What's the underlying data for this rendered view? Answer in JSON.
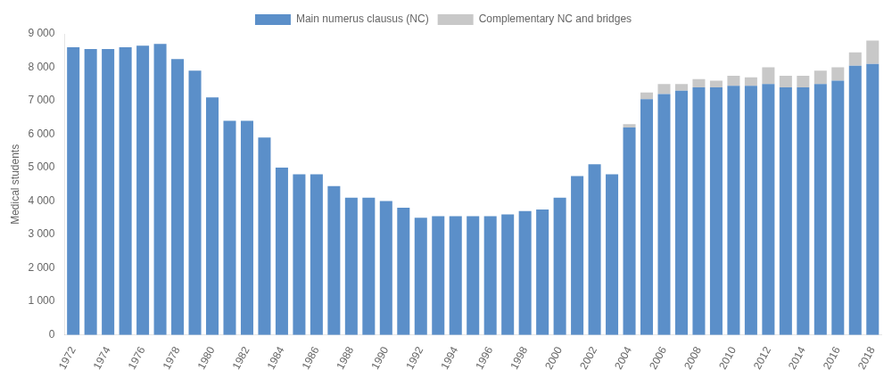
{
  "chart_data": {
    "type": "bar",
    "ylabel": "Medical students",
    "categories": [
      "1972",
      null,
      "1974",
      null,
      "1976",
      null,
      "1978",
      null,
      "1980",
      null,
      "1982",
      null,
      "1984",
      null,
      "1986",
      null,
      "1988",
      null,
      "1990",
      null,
      "1992",
      null,
      "1994",
      null,
      "1996",
      null,
      "1998",
      null,
      "2000",
      null,
      "2002",
      null,
      "2004",
      null,
      "2006",
      null,
      "2008",
      null,
      "2010",
      null,
      "2012",
      null,
      "2014",
      null,
      "2016",
      null,
      "2018"
    ],
    "series": [
      {
        "name": "Main numerus clausus (NC)",
        "color": "#5b8fc9",
        "values": [
          8600,
          8550,
          8550,
          8600,
          8650,
          8700,
          8250,
          7900,
          7100,
          6400,
          6400,
          5900,
          5000,
          4800,
          4800,
          4450,
          4100,
          4100,
          4000,
          3800,
          3500,
          3550,
          3550,
          3550,
          3550,
          3600,
          3700,
          3750,
          4100,
          4750,
          5100,
          4800,
          6200,
          7050,
          7200,
          7300,
          7400,
          7400,
          7450,
          7450,
          7500,
          7400,
          7400,
          7500,
          7600,
          8050,
          8100
        ]
      },
      {
        "name": "Complementary NC and bridges",
        "color": "#c8c8c8",
        "values": [
          0,
          0,
          0,
          0,
          0,
          0,
          0,
          0,
          0,
          0,
          0,
          0,
          0,
          0,
          0,
          0,
          0,
          0,
          0,
          0,
          0,
          0,
          0,
          0,
          0,
          0,
          0,
          0,
          0,
          0,
          0,
          0,
          100,
          200,
          300,
          200,
          250,
          200,
          300,
          250,
          500,
          350,
          350,
          400,
          400,
          400,
          700
        ]
      }
    ],
    "stacked": true,
    "ylim": [
      0,
      9000
    ],
    "yticks": [
      0,
      {
        "value": 1000,
        "label": "1 000"
      },
      {
        "value": 2000,
        "label": "2 000"
      },
      {
        "value": 3000,
        "label": "3 000"
      },
      {
        "value": 4000,
        "label": "4 000"
      },
      {
        "value": 5000,
        "label": "5 000"
      },
      {
        "value": 6000,
        "label": "6 000"
      },
      {
        "value": 7000,
        "label": "7 000"
      },
      {
        "value": 8000,
        "label": "8 000"
      },
      {
        "value": 9000,
        "label": "9 000"
      }
    ],
    "grid": false,
    "legend": "top"
  }
}
